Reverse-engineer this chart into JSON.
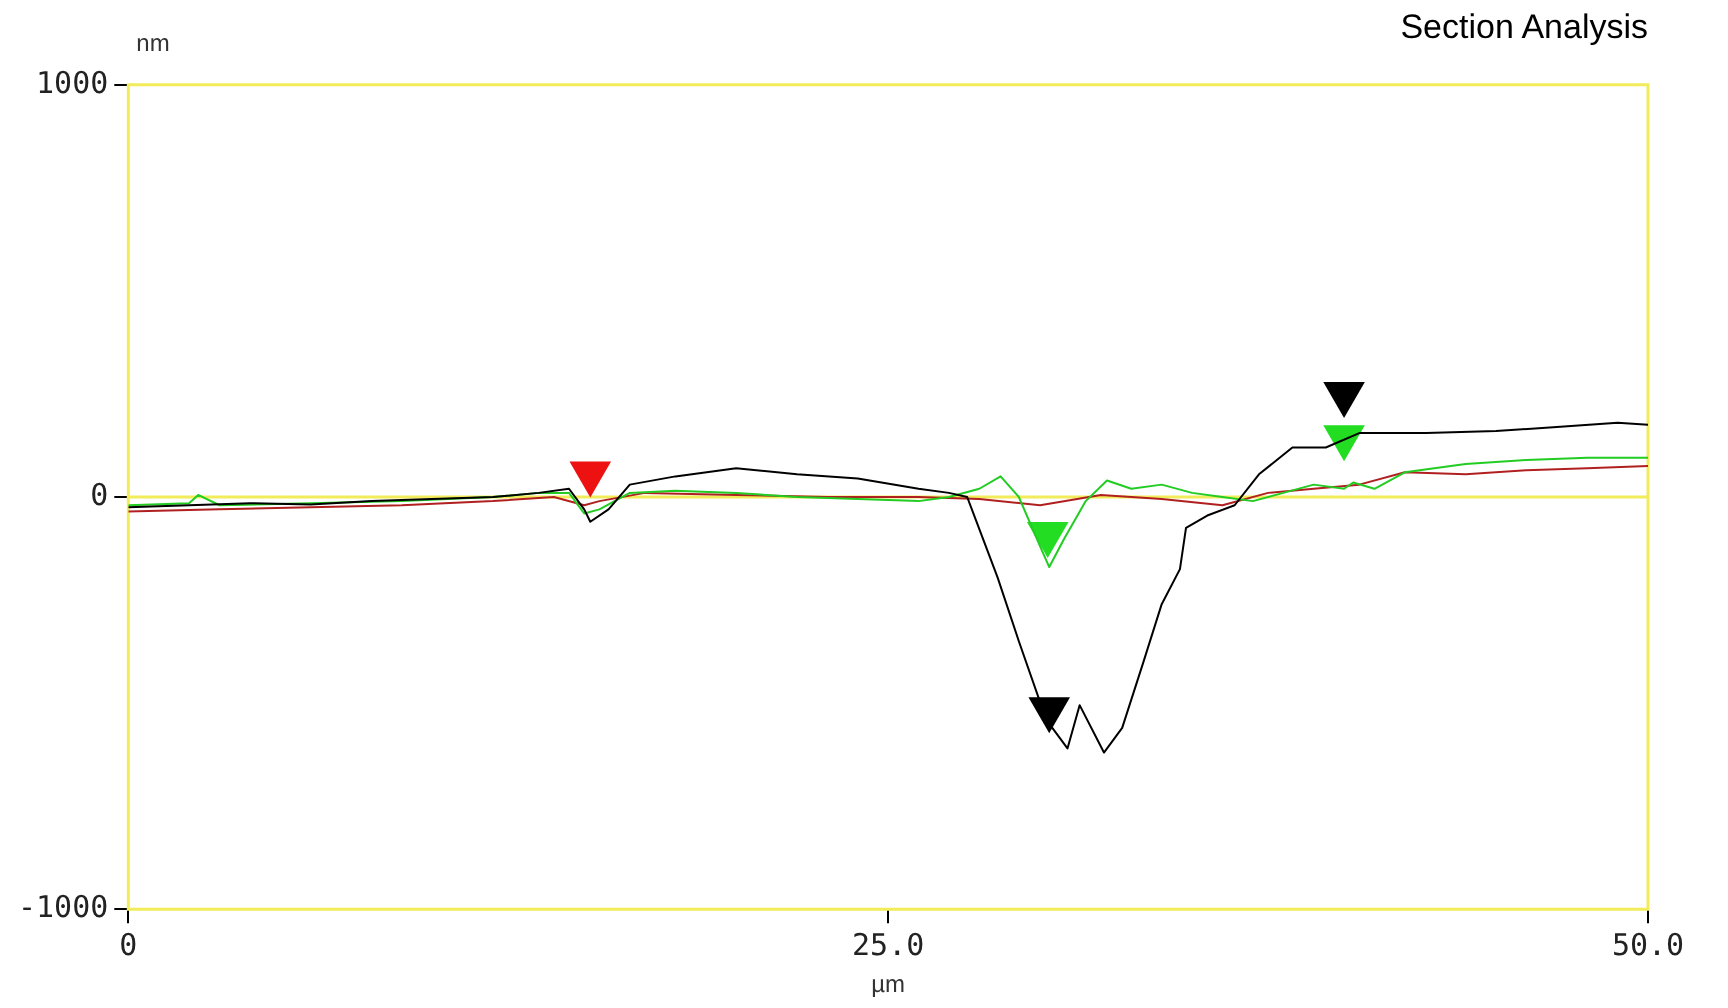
{
  "chart_data": {
    "type": "line",
    "title": "Section Analysis",
    "xlabel": "µm",
    "ylabel": "nm",
    "xlim": [
      0,
      50
    ],
    "xticks": [
      0,
      {
        "value": 25,
        "label": "25.0"
      },
      {
        "value": 50,
        "label": "50.0"
      }
    ],
    "ylim": [
      -1000,
      1000
    ],
    "yticks": [
      -1000,
      0,
      1000
    ],
    "grid": false,
    "legend": false,
    "marker": "none",
    "line_style": "solid",
    "ref_lines": [
      {
        "axis": "y",
        "value": 0,
        "color": "#f2ec5a"
      }
    ],
    "series": [
      {
        "color": "#000000",
        "x": [
          0,
          2,
          4,
          6,
          8,
          10,
          12,
          13.5,
          14.5,
          15,
          15.2,
          15.8,
          16.5,
          18,
          20,
          22,
          24,
          26,
          27,
          27.6,
          28.6,
          29.3,
          30.2,
          30.9,
          31.3,
          32.1,
          32.7,
          33.4,
          34,
          34.6,
          34.8,
          35.5,
          36.4,
          37.2,
          38.3,
          39.4,
          40.5,
          42.7,
          45,
          47,
          49,
          50
        ],
        "values": [
          -25,
          -20,
          -15,
          -18,
          -10,
          -5,
          0,
          10,
          20,
          -30,
          -60,
          -30,
          30,
          50,
          70,
          55,
          45,
          20,
          10,
          0,
          -195,
          -350,
          -540,
          -610,
          -505,
          -620,
          -560,
          -400,
          -260,
          -175,
          -75,
          -45,
          -20,
          55,
          120,
          120,
          155,
          155,
          160,
          170,
          180,
          175
        ]
      },
      {
        "color": "#22cc22",
        "x": [
          0,
          2,
          2.3,
          3,
          6,
          9,
          12,
          13.5,
          14.5,
          15,
          15.5,
          16.5,
          18,
          20,
          22,
          24,
          26,
          27,
          28,
          28.7,
          29.3,
          30,
          30.3,
          30.8,
          31.5,
          32.2,
          33,
          34,
          35,
          36,
          37,
          38,
          39,
          40,
          40.3,
          41,
          42,
          44,
          46,
          48,
          50
        ],
        "values": [
          -20,
          -15,
          5,
          -20,
          -15,
          -10,
          0,
          10,
          10,
          -40,
          -30,
          10,
          15,
          10,
          0,
          -5,
          -10,
          0,
          20,
          50,
          0,
          -120,
          -170,
          -100,
          -10,
          40,
          20,
          30,
          10,
          0,
          -10,
          10,
          30,
          20,
          35,
          20,
          60,
          80,
          90,
          95,
          95
        ]
      },
      {
        "color": "#b02020",
        "x": [
          0,
          3,
          6,
          9,
          12,
          14,
          15,
          15.5,
          17,
          20,
          23,
          26,
          28,
          30,
          32,
          34,
          36,
          37.5,
          39,
          40.5,
          42,
          44,
          46,
          48,
          50
        ],
        "values": [
          -35,
          -30,
          -25,
          -20,
          -10,
          0,
          -20,
          -10,
          10,
          5,
          0,
          0,
          -5,
          -20,
          5,
          -5,
          -20,
          10,
          20,
          30,
          60,
          55,
          65,
          70,
          75
        ]
      },
      {
        "type": "scatter",
        "marker": "triangle",
        "color": "#000000",
        "x": [
          30.3,
          40
        ],
        "values": [
          -515,
          250
        ]
      },
      {
        "type": "scatter",
        "marker": "triangle",
        "color": "#22dd22",
        "x": [
          30.25,
          40
        ],
        "values": [
          -90,
          145
        ]
      },
      {
        "type": "scatter",
        "marker": "triangle",
        "color": "#ee1111",
        "x": [
          15.2
        ],
        "values": [
          57
        ]
      }
    ]
  }
}
